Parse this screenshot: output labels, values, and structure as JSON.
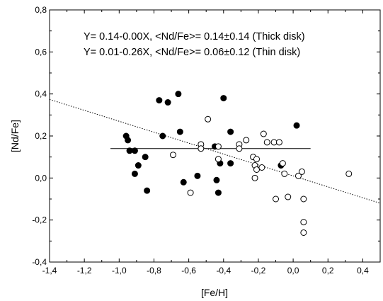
{
  "chart_data": {
    "type": "scatter",
    "title": "",
    "xlabel": "[Fe/H]",
    "ylabel": "[Nd/Fe]",
    "xlim": [
      -1.4,
      0.5
    ],
    "ylim": [
      -0.4,
      0.8
    ],
    "x_ticks": [
      -1.4,
      -1.2,
      -1.0,
      -0.8,
      -0.6,
      -0.4,
      -0.2,
      0.0,
      0.2,
      0.4
    ],
    "x_tick_labels": [
      "-1,4",
      "-1,2",
      "-1,0",
      "-0,8",
      "-0,6",
      "-0,4",
      "-0,2",
      "0,0",
      "0,2",
      "0,4"
    ],
    "y_ticks": [
      -0.4,
      -0.2,
      0.0,
      0.2,
      0.4,
      0.6,
      0.8
    ],
    "y_tick_labels": [
      "-0,4",
      "-0,2",
      "0,0",
      "0,2",
      "0,4",
      "0,6",
      "0,8"
    ],
    "grid": false,
    "annotations": [
      "Y= 0.14-0.00X,  <Nd/Fe>= 0.14±0.14 (Thick disk)",
      "Y= 0.01-0.26X,  <Nd/Fe>= 0.06±0.12 (Thin disk)"
    ],
    "series": [
      {
        "marker": "filled-circle",
        "color": "#000000",
        "points": [
          [
            -0.96,
            0.2
          ],
          [
            -0.95,
            0.18
          ],
          [
            -0.94,
            0.13
          ],
          [
            -0.91,
            0.13
          ],
          [
            -0.91,
            0.02
          ],
          [
            -0.89,
            0.06
          ],
          [
            -0.85,
            0.1
          ],
          [
            -0.84,
            -0.06
          ],
          [
            -0.77,
            0.37
          ],
          [
            -0.75,
            0.2
          ],
          [
            -0.72,
            0.36
          ],
          [
            -0.66,
            0.4
          ],
          [
            -0.65,
            0.22
          ],
          [
            -0.63,
            -0.02
          ],
          [
            -0.55,
            0.01
          ],
          [
            -0.45,
            0.15
          ],
          [
            -0.44,
            -0.01
          ],
          [
            -0.43,
            -0.07
          ],
          [
            -0.42,
            0.07
          ],
          [
            -0.4,
            0.38
          ],
          [
            -0.36,
            0.22
          ],
          [
            -0.36,
            0.07
          ],
          [
            -0.07,
            0.06
          ],
          [
            0.02,
            0.25
          ]
        ]
      },
      {
        "marker": "open-circle",
        "color": "#000000",
        "points": [
          [
            -0.69,
            0.11
          ],
          [
            -0.59,
            -0.07
          ],
          [
            -0.53,
            0.16
          ],
          [
            -0.53,
            0.14
          ],
          [
            -0.49,
            0.28
          ],
          [
            -0.43,
            0.15
          ],
          [
            -0.43,
            0.09
          ],
          [
            -0.31,
            0.16
          ],
          [
            -0.31,
            0.14
          ],
          [
            -0.27,
            0.18
          ],
          [
            -0.23,
            0.1
          ],
          [
            -0.22,
            0.06
          ],
          [
            -0.22,
            0.0
          ],
          [
            -0.21,
            0.09
          ],
          [
            -0.21,
            0.04
          ],
          [
            -0.18,
            0.05
          ],
          [
            -0.17,
            0.21
          ],
          [
            -0.15,
            0.17
          ],
          [
            -0.11,
            0.17
          ],
          [
            -0.1,
            -0.1
          ],
          [
            -0.08,
            0.17
          ],
          [
            -0.06,
            0.07
          ],
          [
            -0.05,
            0.02
          ],
          [
            -0.03,
            -0.09
          ],
          [
            0.03,
            0.01
          ],
          [
            0.05,
            0.03
          ],
          [
            0.06,
            -0.1
          ],
          [
            0.06,
            -0.21
          ],
          [
            0.06,
            -0.26
          ],
          [
            0.32,
            0.02
          ]
        ]
      }
    ],
    "fit_lines": [
      {
        "style": "solid",
        "x_range": [
          -1.05,
          0.1
        ],
        "intercept": 0.14,
        "slope": 0.0
      },
      {
        "style": "dotted",
        "x_range": [
          -1.4,
          0.5
        ],
        "intercept": 0.01,
        "slope": -0.26
      }
    ]
  }
}
